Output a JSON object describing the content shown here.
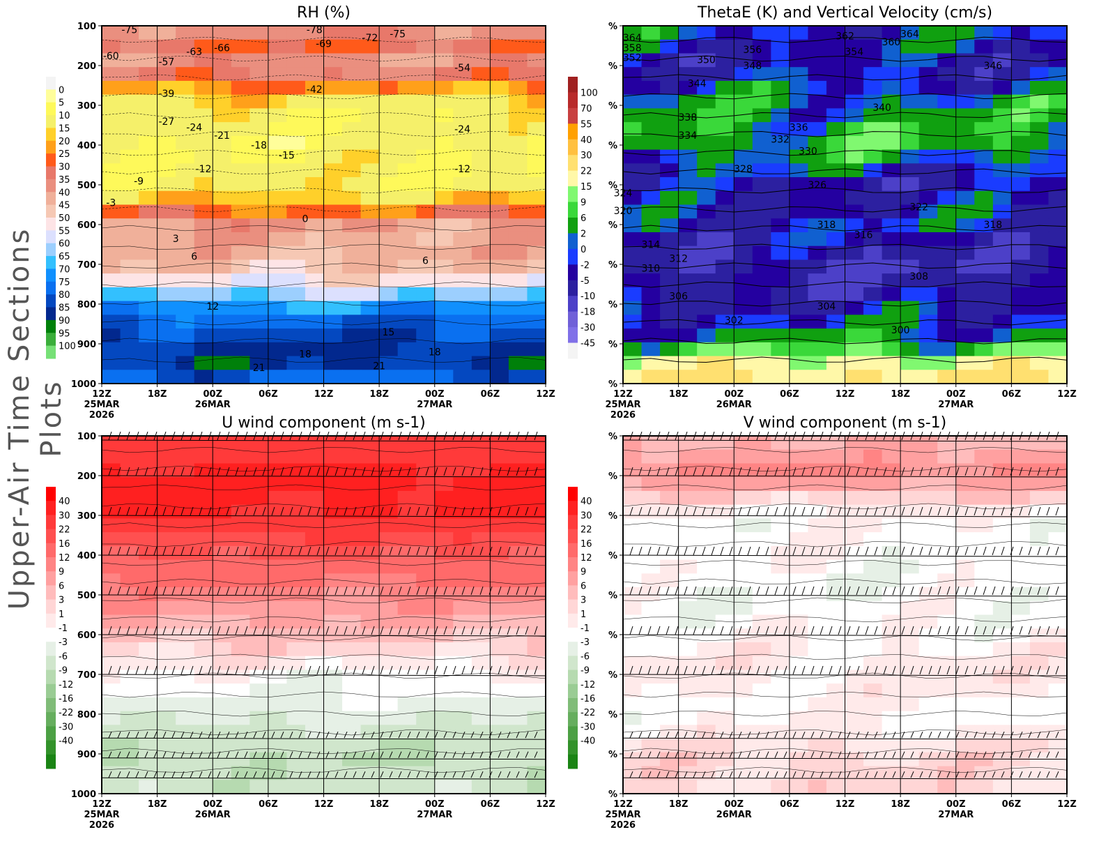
{
  "page_title": "Upper-Air Time Sections Plots",
  "time_ticks": [
    {
      "l1": "12Z",
      "l2": "25MAR",
      "l3": "2026"
    },
    {
      "l1": "18Z"
    },
    {
      "l1": "00Z",
      "l2": "26MAR"
    },
    {
      "l1": "06Z"
    },
    {
      "l1": "12Z"
    },
    {
      "l1": "18Z"
    },
    {
      "l1": "00Z",
      "l2": "27MAR"
    },
    {
      "l1": "06Z"
    },
    {
      "l1": "12Z"
    }
  ],
  "chart_data": [
    {
      "type": "heatmap",
      "title": "RH (%)",
      "ylabel_ticks": [
        "100",
        "200",
        "300",
        "400",
        "500",
        "600",
        "700",
        "800",
        "900",
        "1000"
      ],
      "ylim": [
        100,
        1000
      ],
      "y_axis": "pressure (hPa), reversed",
      "colorbar": {
        "levels": [
          "0",
          "5",
          "10",
          "15",
          "20",
          "25",
          "30",
          "35",
          "40",
          "45",
          "50",
          "55",
          "60",
          "65",
          "70",
          "75",
          "80",
          "85",
          "90",
          "95",
          "100"
        ],
        "colors": [
          "#f4f4f4",
          "#fffe9a",
          "#fef95a",
          "#f5f06a",
          "#ffd02a",
          "#ffa01a",
          "#ff5a1a",
          "#e8786a",
          "#ea8f7f",
          "#f0b09a",
          "#f6c8b4",
          "#fde4e6",
          "#dce0fe",
          "#9ccffe",
          "#33c0fe",
          "#1090fe",
          "#0a70f0",
          "#0448c0",
          "#02288e",
          "#00800a",
          "#3aae3a",
          "#76e076"
        ]
      },
      "profile": {
        "p": [
          100,
          150,
          200,
          250,
          300,
          400,
          500,
          550,
          600,
          700,
          750,
          800,
          850,
          900,
          950,
          1000
        ],
        "v": [
          40,
          30,
          42,
          25,
          12,
          10,
          12,
          20,
          40,
          45,
          55,
          70,
          80,
          86,
          86,
          76
        ]
      },
      "contour_labels": [
        {
          "t": "-75",
          "time": "25MAR 15Z",
          "p": 110
        },
        {
          "t": "-60",
          "time": "25MAR 13Z",
          "p": 175
        },
        {
          "t": "-57",
          "time": "25MAR 19Z",
          "p": 190
        },
        {
          "t": "-63",
          "time": "25MAR 22Z",
          "p": 165
        },
        {
          "t": "-66",
          "time": "26MAR 01Z",
          "p": 155
        },
        {
          "t": "-78",
          "time": "26MAR 11Z",
          "p": 110
        },
        {
          "t": "-69",
          "time": "26MAR 12Z",
          "p": 145
        },
        {
          "t": "-72",
          "time": "26MAR 17Z",
          "p": 130
        },
        {
          "t": "-75",
          "time": "26MAR 20Z",
          "p": 120
        },
        {
          "t": "-54",
          "time": "27MAR 03Z",
          "p": 205
        },
        {
          "t": "-39",
          "time": "25MAR 19Z",
          "p": 270
        },
        {
          "t": "-27",
          "time": "25MAR 19Z",
          "p": 340
        },
        {
          "t": "-24",
          "time": "25MAR 22Z",
          "p": 355
        },
        {
          "t": "-21",
          "time": "26MAR 01Z",
          "p": 375
        },
        {
          "t": "-18",
          "time": "26MAR 05Z",
          "p": 400
        },
        {
          "t": "-15",
          "time": "26MAR 08Z",
          "p": 425
        },
        {
          "t": "-12",
          "time": "25MAR 23Z",
          "p": 460
        },
        {
          "t": "-9",
          "time": "25MAR 16Z",
          "p": 490
        },
        {
          "t": "-3",
          "time": "25MAR 13Z",
          "p": 545
        },
        {
          "t": "0",
          "time": "26MAR 10Z",
          "p": 585
        },
        {
          "t": "3",
          "time": "25MAR 20Z",
          "p": 635
        },
        {
          "t": "6",
          "time": "25MAR 22Z",
          "p": 680
        },
        {
          "t": "12",
          "time": "26MAR 00Z",
          "p": 805
        },
        {
          "t": "15",
          "time": "26MAR 19Z",
          "p": 870
        },
        {
          "t": "18",
          "time": "26MAR 10Z",
          "p": 925
        },
        {
          "t": "21",
          "time": "26MAR 05Z",
          "p": 960
        },
        {
          "t": "-42",
          "time": "26MAR 11Z",
          "p": 260
        },
        {
          "t": "-24",
          "time": "27MAR 03Z",
          "p": 360
        },
        {
          "t": "-12",
          "time": "27MAR 03Z",
          "p": 460
        },
        {
          "t": "6",
          "time": "26MAR 23Z",
          "p": 690
        },
        {
          "t": "18",
          "time": "27MAR 00Z",
          "p": 920
        },
        {
          "t": "21",
          "time": "26MAR 18Z",
          "p": 955
        }
      ]
    },
    {
      "type": "heatmap",
      "title": "ThetaE (K) and Vertical Velocity (cm/s)",
      "ylabel_ticks": [
        "%",
        "%",
        "%",
        "%",
        "%",
        "%",
        "%",
        "%",
        "%",
        "%"
      ],
      "ylim": [
        100,
        1000
      ],
      "colorbar": {
        "levels": [
          "100",
          "70",
          "55",
          "40",
          "30",
          "22",
          "15",
          "9",
          "6",
          "2",
          "0",
          "-2",
          "-5",
          "-10",
          "-18",
          "-30",
          "-45"
        ],
        "colors": [
          "#a02020",
          "#b82a2a",
          "#c84040",
          "#ffa000",
          "#ffc040",
          "#ffe070",
          "#fff8a8",
          "#80f870",
          "#3ad83a",
          "#10a010",
          "#1060d0",
          "#1a3cff",
          "#2400a0",
          "#2c20a0",
          "#4c40c8",
          "#7060d8",
          "#8070e8",
          "#f4f4f4"
        ]
      },
      "profile": {
        "p": [
          100,
          150,
          200,
          300,
          400,
          500,
          600,
          700,
          800,
          900,
          950,
          1000
        ],
        "v": [
          0,
          -2,
          -5,
          3,
          6,
          -5,
          -2,
          -10,
          -5,
          4,
          18,
          25
        ]
      },
      "contour_labels": [
        {
          "t": "364",
          "time": "25MAR 13Z",
          "p": 130
        },
        {
          "t": "358",
          "time": "25MAR 13Z",
          "p": 155
        },
        {
          "t": "352",
          "time": "25MAR 13Z",
          "p": 180
        },
        {
          "t": "350",
          "time": "25MAR 21Z",
          "p": 185
        },
        {
          "t": "356",
          "time": "26MAR 02Z",
          "p": 160
        },
        {
          "t": "348",
          "time": "26MAR 02Z",
          "p": 200
        },
        {
          "t": "362",
          "time": "26MAR 12Z",
          "p": 125
        },
        {
          "t": "354",
          "time": "26MAR 13Z",
          "p": 165
        },
        {
          "t": "360",
          "time": "26MAR 17Z",
          "p": 140
        },
        {
          "t": "364",
          "time": "26MAR 19Z",
          "p": 120
        },
        {
          "t": "346",
          "time": "27MAR 04Z",
          "p": 200
        },
        {
          "t": "344",
          "time": "25MAR 20Z",
          "p": 245
        },
        {
          "t": "340",
          "time": "26MAR 16Z",
          "p": 305
        },
        {
          "t": "338",
          "time": "25MAR 19Z",
          "p": 330
        },
        {
          "t": "334",
          "time": "25MAR 19Z",
          "p": 375
        },
        {
          "t": "336",
          "time": "26MAR 07Z",
          "p": 355
        },
        {
          "t": "332",
          "time": "26MAR 05Z",
          "p": 385
        },
        {
          "t": "330",
          "time": "26MAR 08Z",
          "p": 415
        },
        {
          "t": "328",
          "time": "26MAR 01Z",
          "p": 460
        },
        {
          "t": "326",
          "time": "26MAR 09Z",
          "p": 500
        },
        {
          "t": "324",
          "time": "25MAR 12Z",
          "p": 520
        },
        {
          "t": "320",
          "time": "25MAR 12Z",
          "p": 565
        },
        {
          "t": "318",
          "time": "26MAR 10Z",
          "p": 600
        },
        {
          "t": "316",
          "time": "26MAR 14Z",
          "p": 625
        },
        {
          "t": "314",
          "time": "25MAR 15Z",
          "p": 650
        },
        {
          "t": "312",
          "time": "25MAR 18Z",
          "p": 685
        },
        {
          "t": "310",
          "time": "25MAR 15Z",
          "p": 710
        },
        {
          "t": "308",
          "time": "26MAR 20Z",
          "p": 730
        },
        {
          "t": "306",
          "time": "25MAR 18Z",
          "p": 780
        },
        {
          "t": "304",
          "time": "26MAR 10Z",
          "p": 805
        },
        {
          "t": "302",
          "time": "26MAR 00Z",
          "p": 840
        },
        {
          "t": "300",
          "time": "26MAR 18Z",
          "p": 865
        },
        {
          "t": "322",
          "time": "26MAR 20Z",
          "p": 555
        },
        {
          "t": "318",
          "time": "27MAR 04Z",
          "p": 600
        }
      ]
    },
    {
      "type": "heatmap",
      "title": "U wind component (m s-1)",
      "ylabel_ticks": [
        "100",
        "200",
        "300",
        "400",
        "500",
        "600",
        "700",
        "800",
        "900",
        "1000"
      ],
      "ylim": [
        100,
        1000
      ],
      "colorbar": {
        "levels": [
          "40",
          "30",
          "22",
          "16",
          "12",
          "9",
          "6",
          "3",
          "1",
          "-1",
          "-3",
          "-6",
          "-9",
          "-12",
          "-16",
          "-22",
          "-30",
          "-40"
        ],
        "colors": [
          "#ff0000",
          "#ff2020",
          "#ff3a3a",
          "#ff5050",
          "#ff6a6a",
          "#ff8484",
          "#ffa0a0",
          "#ffbcbc",
          "#ffd6d6",
          "#ffeaea",
          "#ffffff",
          "#e6f0e6",
          "#d0e6cc",
          "#b6dab0",
          "#9acc94",
          "#80bc78",
          "#66ae5e",
          "#4ca044",
          "#32922a",
          "#1a8414"
        ]
      },
      "profile": {
        "p": [
          100,
          200,
          300,
          400,
          500,
          600,
          650,
          700,
          800,
          900,
          1000
        ],
        "v": [
          22,
          32,
          30,
          16,
          10,
          4,
          1,
          -1.5,
          -5,
          -9,
          -7
        ]
      }
    },
    {
      "type": "heatmap",
      "title": "V wind component (m s-1)",
      "ylabel_ticks": [
        "%",
        "%",
        "%",
        "%",
        "%",
        "%",
        "%",
        "%",
        "%",
        "%"
      ],
      "ylim": [
        100,
        1000
      ],
      "colorbar": {
        "levels": [
          "40",
          "30",
          "22",
          "16",
          "12",
          "9",
          "6",
          "3",
          "1",
          "-1",
          "-3",
          "-6",
          "-9",
          "-12",
          "-16",
          "-22",
          "-30",
          "-40"
        ],
        "colors": [
          "#ff0000",
          "#ff2020",
          "#ff3a3a",
          "#ff5050",
          "#ff6a6a",
          "#ff8484",
          "#ffa0a0",
          "#ffbcbc",
          "#ffd6d6",
          "#ffeaea",
          "#ffffff",
          "#e6f0e6",
          "#d0e6cc",
          "#b6dab0",
          "#9acc94",
          "#80bc78",
          "#66ae5e",
          "#4ca044",
          "#32922a",
          "#1a8414"
        ]
      },
      "profile": {
        "p": [
          100,
          200,
          250,
          300,
          400,
          500,
          700,
          800,
          900,
          1000
        ],
        "v": [
          5,
          10,
          3,
          -1.5,
          -1.5,
          -2.5,
          0,
          -1.5,
          1.5,
          2
        ]
      }
    }
  ]
}
